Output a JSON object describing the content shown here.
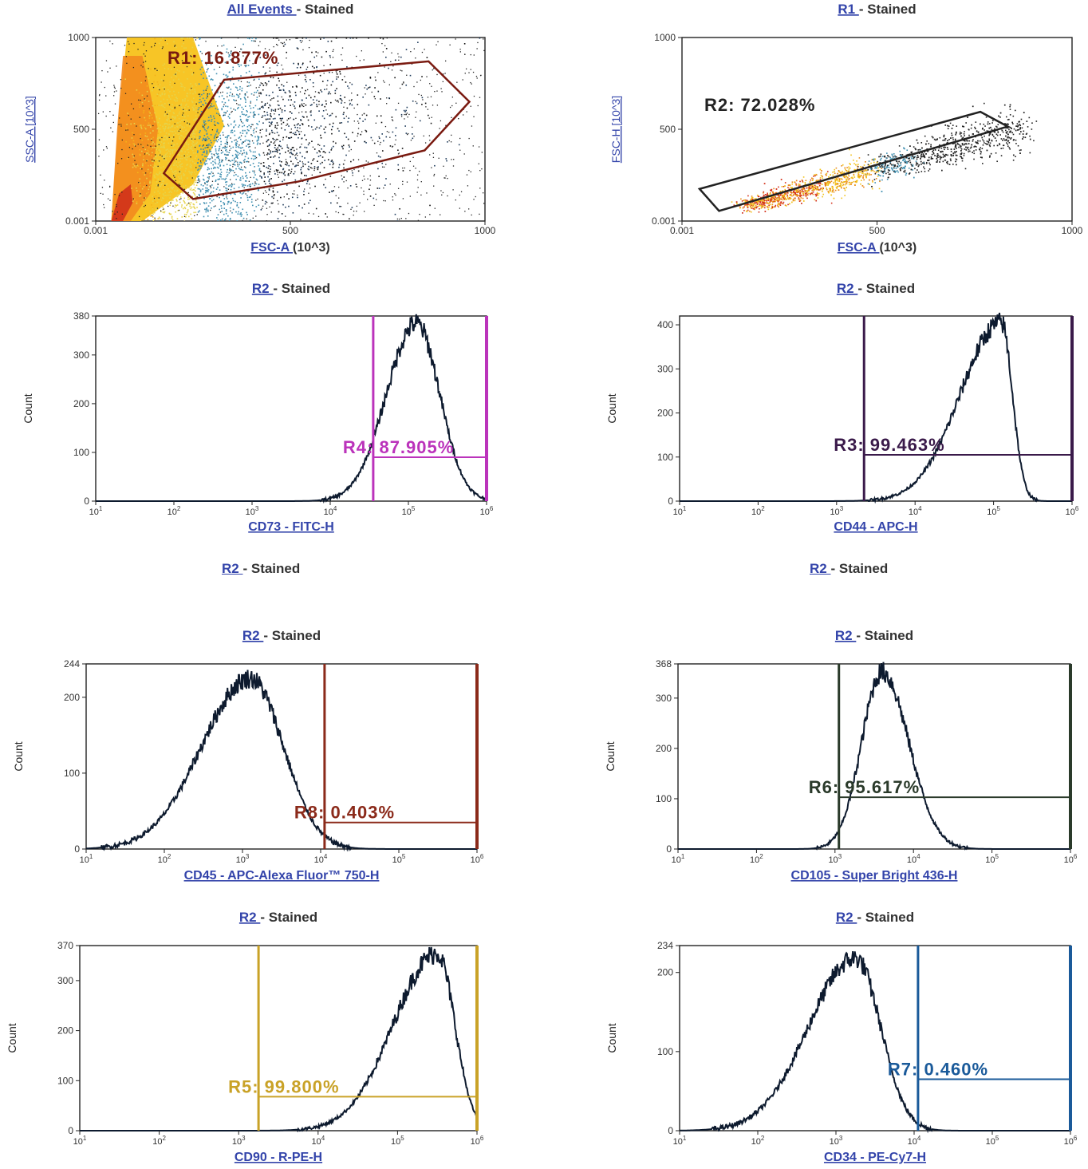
{
  "orphan_titles": [
    {
      "link": "R2 ",
      "rest": " - Stained"
    },
    {
      "link": "R2 ",
      "rest": " - Stained"
    }
  ],
  "chart_data": [
    {
      "id": "p1",
      "type": "scatter",
      "title_link": "All Events ",
      "title_rest": " - Stained",
      "xlabel_link": "FSC-A ",
      "xlabel_rest": "(10^3)",
      "ylabel": "SSC-A [10^3]",
      "xlim": [
        0,
        1000
      ],
      "ylim": [
        0,
        1000
      ],
      "xticks": [
        "0.001",
        "500",
        "1000"
      ],
      "yticks": [
        "0.001",
        "500",
        "1000"
      ],
      "density": "pale yellow→orange→red core along left edge, blue/black sparse cloud to the right",
      "gate": {
        "label": "R1: 16.877%",
        "color": "#7a1a10",
        "polygon": [
          [
            175,
            260
          ],
          [
            330,
            770
          ],
          [
            855,
            870
          ],
          [
            960,
            650
          ],
          [
            845,
            385
          ],
          [
            520,
            215
          ],
          [
            250,
            120
          ]
        ]
      }
    },
    {
      "id": "p2",
      "type": "scatter",
      "title_link": "R1 ",
      "title_rest": " - Stained",
      "xlabel_link": "FSC-A ",
      "xlabel_rest": "(10^3)",
      "ylabel": "FSC-H [10^3]",
      "xlim": [
        0,
        1000
      ],
      "ylim": [
        0,
        1000
      ],
      "xticks": [
        "0.001",
        "500",
        "1000"
      ],
      "yticks": [
        "0.001",
        "500",
        "1000"
      ],
      "density": "diagonal band from (170,90) to (860,520), red core at lower left",
      "gate": {
        "label": "R2: 72.028%",
        "color": "#222222",
        "polygon": [
          [
            45,
            175
          ],
          [
            765,
            595
          ],
          [
            835,
            515
          ],
          [
            95,
            55
          ]
        ]
      }
    },
    {
      "id": "p3",
      "type": "histogram",
      "title_link": "R2 ",
      "title_rest": " - Stained",
      "xlabel": "CD73 - FITC-H",
      "ylabel": "Count",
      "xlog": [
        1,
        6
      ],
      "ylim": [
        0,
        380
      ],
      "yticks": [
        0,
        100,
        200,
        300,
        380
      ],
      "peak_log": 5.1,
      "peak_count": 365,
      "sigma_left": 0.38,
      "sigma_right": 0.3,
      "gate": {
        "label": "R4: 87.905%",
        "color": "#bb33bb",
        "x1_log": 4.55,
        "x2_log": 6.0,
        "level": 90
      }
    },
    {
      "id": "p4",
      "type": "histogram",
      "title_link": "R2 ",
      "title_rest": " - Stained",
      "xlabel": "CD44 - APC-H",
      "ylabel": "Count",
      "xlog": [
        1,
        6
      ],
      "ylim": [
        0,
        420
      ],
      "yticks": [
        0,
        100,
        200,
        300,
        400
      ],
      "peak_log": 5.1,
      "peak_count": 405,
      "sigma_left": 0.52,
      "sigma_right": 0.14,
      "gate": {
        "label": "R3: 99.463%",
        "color": "#3a1a4a",
        "x1_log": 3.35,
        "x2_log": 6.0,
        "level": 105
      }
    },
    {
      "id": "p5",
      "type": "histogram",
      "title_link": "R2 ",
      "title_rest": " - Stained",
      "xlabel": "CD45 - APC-Alexa Fluor™ 750-H",
      "ylabel": "Count",
      "xlog": [
        1,
        6
      ],
      "ylim": [
        0,
        244
      ],
      "yticks": [
        0,
        100,
        200,
        244
      ],
      "peak_log": 3.1,
      "peak_count": 225,
      "sigma_left": 0.62,
      "sigma_right": 0.42,
      "gate": {
        "label": "R8: 0.403%",
        "color": "#8b2a1a",
        "x1_log": 4.05,
        "x2_log": 6.0,
        "level": 35
      }
    },
    {
      "id": "p6",
      "type": "histogram",
      "title_link": "R2 ",
      "title_rest": " - Stained",
      "xlabel": "CD105 - Super Bright 436-H",
      "ylabel": "Count",
      "xlog": [
        1,
        6
      ],
      "ylim": [
        0,
        368
      ],
      "yticks": [
        0,
        100,
        200,
        300,
        368
      ],
      "peak_log": 3.6,
      "peak_count": 352,
      "sigma_left": 0.26,
      "sigma_right": 0.34,
      "gate": {
        "label": "R6: 95.617%",
        "color": "#2a3a2a",
        "x1_log": 3.05,
        "x2_log": 6.0,
        "level": 103
      }
    },
    {
      "id": "p7",
      "type": "histogram",
      "title_link": "R2 ",
      "title_rest": " - Stained",
      "xlabel": "CD90 - R-PE-H",
      "ylabel": "Count",
      "xlog": [
        1,
        6
      ],
      "ylim": [
        0,
        370
      ],
      "yticks": [
        0,
        100,
        200,
        300,
        370
      ],
      "peak_log": 5.5,
      "peak_count": 355,
      "sigma_left": 0.55,
      "sigma_right": 0.22,
      "gate": {
        "label": "R5: 99.800%",
        "color": "#c9a227",
        "x1_log": 3.25,
        "x2_log": 6.0,
        "level": 68
      }
    },
    {
      "id": "p8",
      "type": "histogram",
      "title_link": "R2 ",
      "title_rest": " - Stained",
      "xlabel": "CD34 - PE-Cy7-H",
      "ylabel": "Count",
      "xlog": [
        1,
        6
      ],
      "ylim": [
        0,
        234
      ],
      "yticks": [
        0,
        100,
        200,
        234
      ],
      "peak_log": 3.25,
      "peak_count": 218,
      "sigma_left": 0.6,
      "sigma_right": 0.32,
      "gate": {
        "label": "R7: 0.460%",
        "color": "#1a5a9a",
        "x1_log": 4.05,
        "x2_log": 6.0,
        "level": 65
      }
    }
  ]
}
